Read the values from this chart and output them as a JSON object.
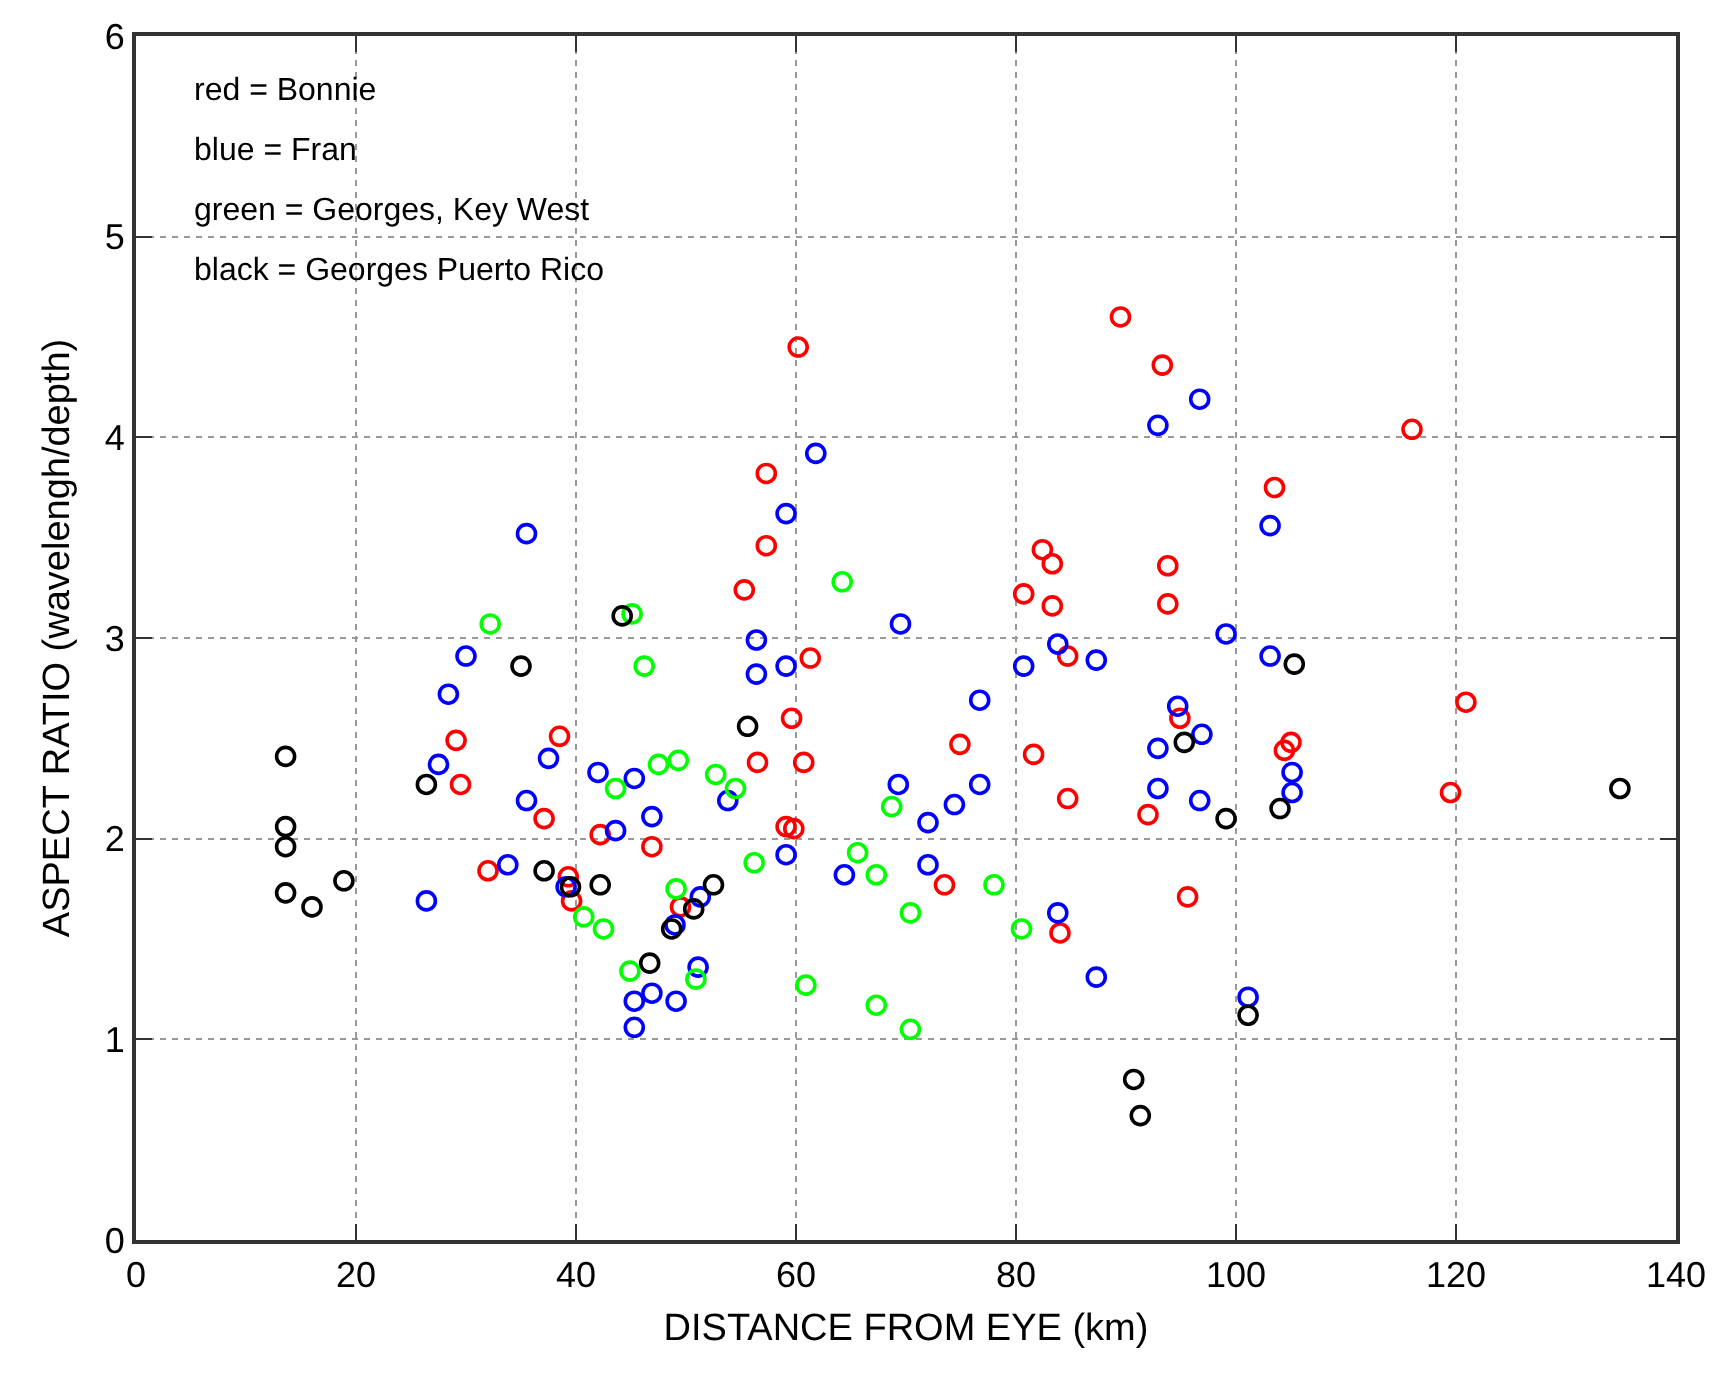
{
  "chart_data": {
    "type": "scatter",
    "xlabel": "DISTANCE FROM EYE (km)",
    "ylabel": "ASPECT RATIO (wavelengh/depth)",
    "annotations": [
      "red = Bonnie",
      "blue = Fran",
      "green = Georges, Key West",
      "black = Georges Puerto Rico"
    ],
    "xlim": [
      0,
      140
    ],
    "xticks": [
      0,
      20,
      40,
      60,
      80,
      100,
      120,
      140
    ],
    "ylim": [
      0,
      6
    ],
    "yticks": [
      0,
      1,
      2,
      3,
      4,
      5,
      6
    ],
    "grid": true,
    "marker": "circle",
    "series": [
      {
        "color": "#ff0000",
        "x": [
          29.1,
          29.5,
          32,
          37.1,
          38.5,
          39.3,
          39.6,
          42.2,
          46.9,
          49.5,
          57.3,
          57.3,
          55.3,
          60.2,
          61.3,
          59.6,
          56.5,
          60.7,
          59.1,
          59.8,
          89.5,
          93.3,
          82.4,
          83.3,
          80.7,
          83.3,
          93.8,
          93.8,
          84.7,
          94.9,
          74.9,
          81.6,
          84.7,
          92,
          73.5,
          84,
          95.6,
          103.5,
          104.4,
          105,
          116,
          120.9,
          119.5
        ],
        "values": [
          2.49,
          2.27,
          1.84,
          2.1,
          2.51,
          1.81,
          1.69,
          2.02,
          1.96,
          1.66,
          3.82,
          3.46,
          3.24,
          4.45,
          2.9,
          2.6,
          2.38,
          2.38,
          2.06,
          2.05,
          4.6,
          4.36,
          3.44,
          3.37,
          3.22,
          3.16,
          3.36,
          3.17,
          2.91,
          2.6,
          2.47,
          2.42,
          2.2,
          2.12,
          1.77,
          1.53,
          1.71,
          3.75,
          2.44,
          2.48,
          4.04,
          2.68,
          2.23
        ]
      },
      {
        "color": "#0000ff",
        "x": [
          35.5,
          30,
          28.4,
          27.5,
          35.5,
          33.8,
          26.4,
          37.5,
          42,
          45.3,
          46.9,
          43.6,
          39.1,
          61.8,
          59.1,
          56.4,
          56.4,
          59.1,
          53.8,
          59.1,
          69.5,
          69.3,
          64.4,
          51.3,
          49,
          51.1,
          45.3,
          46.9,
          49.1,
          45.3,
          92.9,
          96.7,
          83.8,
          80.7,
          87.3,
          99.1,
          103.1,
          103.1,
          76.7,
          94.7,
          96.9,
          92.9,
          92.9,
          96.7,
          76.7,
          74.4,
          72,
          72,
          83.8,
          87.3,
          101.1,
          105.1,
          105.1
        ],
        "values": [
          3.52,
          2.91,
          2.72,
          2.37,
          2.19,
          1.87,
          1.69,
          2.4,
          2.33,
          2.3,
          2.11,
          2.04,
          1.76,
          3.92,
          3.62,
          2.99,
          2.82,
          2.86,
          2.19,
          1.92,
          3.07,
          2.27,
          1.82,
          1.71,
          1.57,
          1.36,
          1.19,
          1.23,
          1.19,
          1.06,
          4.06,
          4.19,
          2.97,
          2.86,
          2.89,
          3.02,
          3.56,
          2.91,
          2.69,
          2.66,
          2.52,
          2.45,
          2.25,
          2.19,
          2.27,
          2.17,
          2.08,
          1.87,
          1.63,
          1.31,
          1.21,
          2.33,
          2.23
        ]
      },
      {
        "color": "#00ff00",
        "x": [
          32.2,
          45.1,
          46.2,
          64.2,
          47.5,
          49.3,
          43.6,
          52.7,
          54.5,
          56.2,
          65.6,
          67.3,
          40.7,
          42.5,
          49.1,
          44.9,
          50.9,
          60.9,
          67.3,
          68.7,
          70.4,
          78,
          80.5,
          70.4
        ],
        "values": [
          3.07,
          3.12,
          2.86,
          3.28,
          2.37,
          2.39,
          2.25,
          2.32,
          2.25,
          1.88,
          1.93,
          1.82,
          1.61,
          1.55,
          1.75,
          1.34,
          1.3,
          1.27,
          1.17,
          2.16,
          1.63,
          1.77,
          1.55,
          1.05
        ]
      },
      {
        "color": "#000000",
        "x": [
          13.6,
          13.6,
          13.6,
          13.6,
          16,
          18.9,
          26.4,
          35,
          44.2,
          37.1,
          39.5,
          42.2,
          55.6,
          52.5,
          50.7,
          48.7,
          46.7,
          95.3,
          99.1,
          101.1,
          90.7,
          91.3,
          104,
          105.3,
          134.9
        ],
        "values": [
          2.41,
          2.06,
          1.96,
          1.73,
          1.66,
          1.79,
          2.27,
          2.86,
          3.11,
          1.84,
          1.76,
          1.77,
          2.56,
          1.77,
          1.65,
          1.55,
          1.38,
          2.48,
          2.1,
          1.12,
          0.8,
          0.62,
          2.15,
          2.87,
          2.25
        ]
      }
    ]
  }
}
